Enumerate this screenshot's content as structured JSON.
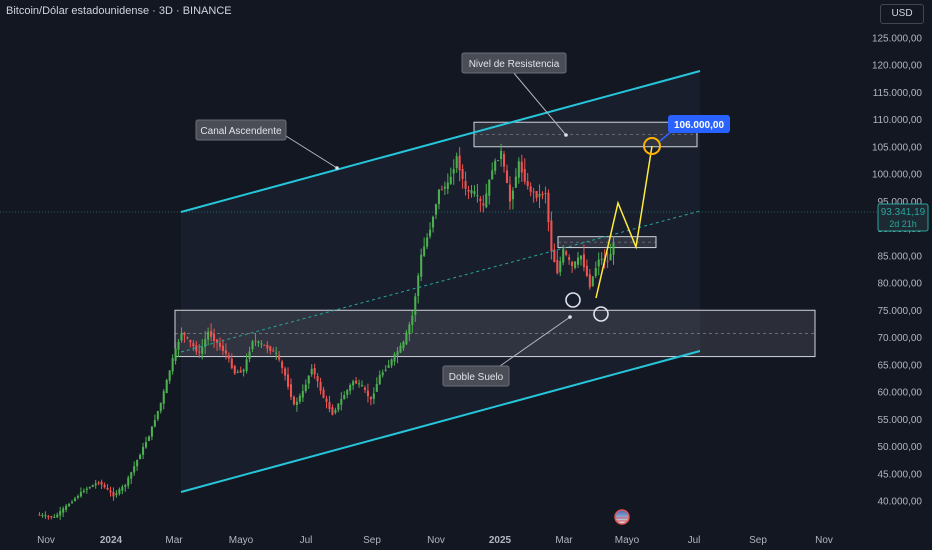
{
  "header": {
    "title": "Bitcoin/Dólar estadounidense · 3D · BINANCE",
    "currency": "USD"
  },
  "price_tag": {
    "price": "93.341,19",
    "countdown": "2d 21h"
  },
  "target_tag": {
    "label": "106.000,00"
  },
  "annotations": {
    "resistance": "Nivel de Resistencia",
    "channel": "Canal Ascendente",
    "double_bottom": "Doble Suelo"
  },
  "colors": {
    "background": "#131722",
    "up": "#26a69a",
    "up_green": "#4caf50",
    "down": "#ef5350",
    "channel": "#26c6da",
    "projection": "#ffeb3b",
    "accent": "#2962ff"
  },
  "chart_data": {
    "type": "candlestick",
    "title": "Bitcoin/Dólar estadounidense · 3D · BINANCE",
    "interval": "3D",
    "y_axis": {
      "ticks": [
        "40.000,00",
        "45.000,00",
        "50.000,00",
        "55.000,00",
        "60.000,00",
        "65.000,00",
        "70.000,00",
        "75.000,00",
        "80.000,00",
        "85.000,00",
        "90.000,00",
        "95.000,00",
        "100.000,00",
        "105.000,00",
        "110.000,00",
        "115.000,00",
        "120.000,00",
        "125.000,00"
      ],
      "range": [
        36500,
        128500
      ]
    },
    "x_axis": {
      "ticks": [
        "Nov",
        "2024",
        "Mar",
        "Mayo",
        "Jul",
        "Sep",
        "Nov",
        "2025",
        "Mar",
        "Mayo",
        "Jul",
        "Sep",
        "Nov"
      ]
    },
    "price_path": [
      [
        0,
        37500
      ],
      [
        6,
        37000
      ],
      [
        12,
        40000
      ],
      [
        16,
        42000
      ],
      [
        21,
        43500
      ],
      [
        26,
        41000
      ],
      [
        30,
        43000
      ],
      [
        34,
        47500
      ],
      [
        38,
        52000
      ],
      [
        42,
        58000
      ],
      [
        46,
        66000
      ],
      [
        49,
        71000
      ],
      [
        52,
        69000
      ],
      [
        55,
        67000
      ],
      [
        58,
        71000
      ],
      [
        61,
        69000
      ],
      [
        64,
        67000
      ],
      [
        67,
        63500
      ],
      [
        70,
        64000
      ],
      [
        73,
        69500
      ],
      [
        77,
        68500
      ],
      [
        81,
        67000
      ],
      [
        84,
        63000
      ],
      [
        87,
        57500
      ],
      [
        90,
        60000
      ],
      [
        93,
        64500
      ],
      [
        97,
        59000
      ],
      [
        100,
        56000
      ],
      [
        104,
        59500
      ],
      [
        107,
        62000
      ],
      [
        110,
        61000
      ],
      [
        113,
        58500
      ],
      [
        116,
        63000
      ],
      [
        119,
        65000
      ],
      [
        122,
        67500
      ],
      [
        124,
        69000
      ],
      [
        127,
        74000
      ],
      [
        130,
        85000
      ],
      [
        133,
        90000
      ],
      [
        136,
        97000
      ],
      [
        139,
        98000
      ],
      [
        142,
        103000
      ],
      [
        145,
        97000
      ],
      [
        148,
        96500
      ],
      [
        151,
        94000
      ],
      [
        154,
        101000
      ],
      [
        157,
        104000
      ],
      [
        160,
        95000
      ],
      [
        163,
        102000
      ],
      [
        166,
        97500
      ],
      [
        169,
        96000
      ],
      [
        172,
        96500
      ],
      [
        174,
        86000
      ],
      [
        176,
        82000
      ],
      [
        178,
        86000
      ],
      [
        181,
        83000
      ],
      [
        184,
        85000
      ],
      [
        187,
        79500
      ],
      [
        190,
        84500
      ],
      [
        193,
        84000
      ],
      [
        195,
        87000
      ]
    ],
    "resistance_zone": [
      105000,
      109500
    ],
    "support_zone": [
      66500,
      75000
    ],
    "neckline_zone": [
      86500,
      88500
    ],
    "current_price": 93341.19,
    "target_price": 106000
  }
}
